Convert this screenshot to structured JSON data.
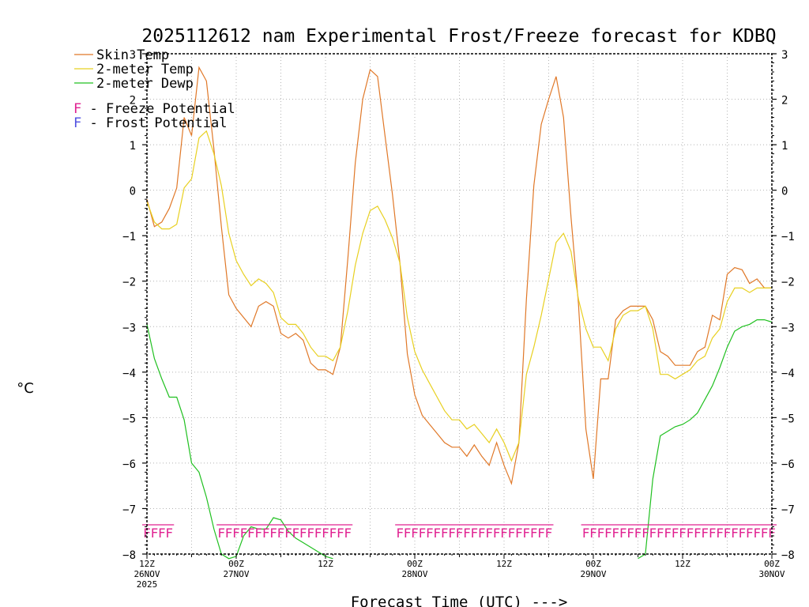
{
  "chart_data": {
    "type": "line",
    "title": "2025112612 nam Experimental Frost/Freeze forecast for KDBQ",
    "ylabel": "°C",
    "xlabel": "Forecast Time (UTC) --->",
    "ylim": [
      -8,
      3
    ],
    "y_ticks": [
      3,
      2,
      1,
      0,
      -1,
      -2,
      -3,
      -4,
      -5,
      -6,
      -7,
      -8
    ],
    "xlim": [
      0,
      84
    ],
    "x_unit": "forecast hour from 2025-11-26 12Z",
    "x_ticks": [
      {
        "x": 0,
        "line1": "12Z",
        "line2": "26NOV",
        "line3": "2025"
      },
      {
        "x": 12,
        "line1": "00Z",
        "line2": "27NOV",
        "line3": ""
      },
      {
        "x": 24,
        "line1": "12Z",
        "line2": "",
        "line3": ""
      },
      {
        "x": 36,
        "line1": "00Z",
        "line2": "28NOV",
        "line3": ""
      },
      {
        "x": 48,
        "line1": "12Z",
        "line2": "",
        "line3": ""
      },
      {
        "x": 60,
        "line1": "00Z",
        "line2": "29NOV",
        "line3": ""
      },
      {
        "x": 72,
        "line1": "12Z",
        "line2": "",
        "line3": ""
      },
      {
        "x": 84,
        "line1": "00Z",
        "line2": "30NOV",
        "line3": ""
      }
    ],
    "grid": true,
    "series": [
      {
        "name": "Skin Temp",
        "color": "#e07828",
        "points": [
          [
            0,
            -0.2
          ],
          [
            1,
            -0.8
          ],
          [
            2,
            -0.7
          ],
          [
            3,
            -0.4
          ],
          [
            4,
            0.05
          ],
          [
            5,
            1.6
          ],
          [
            6,
            1.2
          ],
          [
            7,
            2.7
          ],
          [
            8,
            2.4
          ],
          [
            9,
            0.9
          ],
          [
            10,
            -0.8
          ],
          [
            11,
            -2.3
          ],
          [
            12,
            -2.6
          ],
          [
            13,
            -2.8
          ],
          [
            14,
            -3.0
          ],
          [
            15,
            -2.55
          ],
          [
            16,
            -2.45
          ],
          [
            17,
            -2.55
          ],
          [
            18,
            -3.15
          ],
          [
            19,
            -3.25
          ],
          [
            20,
            -3.15
          ],
          [
            21,
            -3.3
          ],
          [
            22,
            -3.8
          ],
          [
            23,
            -3.95
          ],
          [
            24,
            -3.95
          ],
          [
            25,
            -4.05
          ],
          [
            26,
            -3.45
          ],
          [
            27,
            -1.5
          ],
          [
            28,
            0.6
          ],
          [
            29,
            2.0
          ],
          [
            30,
            2.65
          ],
          [
            31,
            2.5
          ],
          [
            32,
            1.2
          ],
          [
            33,
            -0.1
          ],
          [
            34,
            -1.6
          ],
          [
            35,
            -3.6
          ],
          [
            36,
            -4.5
          ],
          [
            37,
            -4.95
          ],
          [
            38,
            -5.15
          ],
          [
            39,
            -5.35
          ],
          [
            40,
            -5.55
          ],
          [
            41,
            -5.65
          ],
          [
            42,
            -5.65
          ],
          [
            43,
            -5.85
          ],
          [
            44,
            -5.6
          ],
          [
            45,
            -5.85
          ],
          [
            46,
            -6.05
          ],
          [
            47,
            -5.55
          ],
          [
            48,
            -6.05
          ],
          [
            49,
            -6.45
          ],
          [
            50,
            -5.55
          ],
          [
            51,
            -2.4
          ],
          [
            52,
            0.1
          ],
          [
            53,
            1.45
          ],
          [
            54,
            2.0
          ],
          [
            55,
            2.5
          ],
          [
            56,
            1.6
          ],
          [
            57,
            -0.6
          ],
          [
            58,
            -2.5
          ],
          [
            59,
            -5.25
          ],
          [
            60,
            -6.35
          ],
          [
            61,
            -4.15
          ],
          [
            62,
            -4.15
          ],
          [
            63,
            -2.85
          ],
          [
            64,
            -2.65
          ],
          [
            65,
            -2.55
          ],
          [
            66,
            -2.55
          ],
          [
            67,
            -2.55
          ],
          [
            68,
            -2.85
          ],
          [
            69,
            -3.55
          ],
          [
            70,
            -3.65
          ],
          [
            71,
            -3.85
          ],
          [
            72,
            -3.85
          ],
          [
            73,
            -3.85
          ],
          [
            74,
            -3.55
          ],
          [
            75,
            -3.45
          ],
          [
            76,
            -2.75
          ],
          [
            77,
            -2.85
          ],
          [
            78,
            -1.85
          ],
          [
            79,
            -1.7
          ],
          [
            80,
            -1.75
          ],
          [
            81,
            -2.05
          ],
          [
            82,
            -1.95
          ],
          [
            83,
            -2.15
          ],
          [
            84,
            -2.15
          ]
        ]
      },
      {
        "name": "2-meter Temp",
        "color": "#e8d020",
        "points": [
          [
            0,
            -0.25
          ],
          [
            1,
            -0.7
          ],
          [
            2,
            -0.85
          ],
          [
            3,
            -0.85
          ],
          [
            4,
            -0.75
          ],
          [
            5,
            0.05
          ],
          [
            6,
            0.25
          ],
          [
            7,
            1.15
          ],
          [
            8,
            1.3
          ],
          [
            9,
            0.8
          ],
          [
            10,
            0.1
          ],
          [
            11,
            -0.95
          ],
          [
            12,
            -1.55
          ],
          [
            13,
            -1.85
          ],
          [
            14,
            -2.1
          ],
          [
            15,
            -1.95
          ],
          [
            16,
            -2.05
          ],
          [
            17,
            -2.25
          ],
          [
            18,
            -2.8
          ],
          [
            19,
            -2.95
          ],
          [
            20,
            -2.95
          ],
          [
            21,
            -3.15
          ],
          [
            22,
            -3.45
          ],
          [
            23,
            -3.65
          ],
          [
            24,
            -3.65
          ],
          [
            25,
            -3.75
          ],
          [
            26,
            -3.45
          ],
          [
            27,
            -2.65
          ],
          [
            28,
            -1.65
          ],
          [
            29,
            -0.95
          ],
          [
            30,
            -0.45
          ],
          [
            31,
            -0.35
          ],
          [
            32,
            -0.65
          ],
          [
            33,
            -1.05
          ],
          [
            34,
            -1.6
          ],
          [
            35,
            -2.8
          ],
          [
            36,
            -3.55
          ],
          [
            37,
            -3.95
          ],
          [
            38,
            -4.25
          ],
          [
            39,
            -4.55
          ],
          [
            40,
            -4.85
          ],
          [
            41,
            -5.05
          ],
          [
            42,
            -5.05
          ],
          [
            43,
            -5.25
          ],
          [
            44,
            -5.15
          ],
          [
            45,
            -5.35
          ],
          [
            46,
            -5.55
          ],
          [
            47,
            -5.25
          ],
          [
            48,
            -5.55
          ],
          [
            49,
            -5.95
          ],
          [
            50,
            -5.55
          ],
          [
            51,
            -4.05
          ],
          [
            52,
            -3.45
          ],
          [
            53,
            -2.75
          ],
          [
            54,
            -1.95
          ],
          [
            55,
            -1.15
          ],
          [
            56,
            -0.95
          ],
          [
            57,
            -1.35
          ],
          [
            58,
            -2.4
          ],
          [
            59,
            -3.05
          ],
          [
            60,
            -3.45
          ],
          [
            61,
            -3.45
          ],
          [
            62,
            -3.75
          ],
          [
            63,
            -3.05
          ],
          [
            64,
            -2.75
          ],
          [
            65,
            -2.65
          ],
          [
            66,
            -2.65
          ],
          [
            67,
            -2.55
          ],
          [
            68,
            -3.05
          ],
          [
            69,
            -4.05
          ],
          [
            70,
            -4.05
          ],
          [
            71,
            -4.15
          ],
          [
            72,
            -4.05
          ],
          [
            73,
            -3.95
          ],
          [
            74,
            -3.75
          ],
          [
            75,
            -3.65
          ],
          [
            76,
            -3.25
          ],
          [
            77,
            -3.05
          ],
          [
            78,
            -2.45
          ],
          [
            79,
            -2.15
          ],
          [
            80,
            -2.15
          ],
          [
            81,
            -2.25
          ],
          [
            82,
            -2.15
          ],
          [
            83,
            -2.15
          ],
          [
            84,
            -2.15
          ]
        ]
      },
      {
        "name": "2-meter Dewp",
        "color": "#20c020",
        "points": [
          [
            0,
            -2.95
          ],
          [
            1,
            -3.7
          ],
          [
            2,
            -4.15
          ],
          [
            3,
            -4.55
          ],
          [
            4,
            -4.55
          ],
          [
            5,
            -5.05
          ],
          [
            6,
            -6.0
          ],
          [
            7,
            -6.2
          ],
          [
            8,
            -6.75
          ],
          [
            9,
            -7.45
          ],
          [
            10,
            -8.0
          ],
          [
            11,
            -8.1
          ],
          [
            12,
            -8.05
          ],
          [
            13,
            -7.6
          ],
          [
            14,
            -7.4
          ],
          [
            15,
            -7.45
          ],
          [
            16,
            -7.45
          ],
          [
            17,
            -7.2
          ],
          [
            18,
            -7.25
          ],
          [
            19,
            -7.5
          ],
          [
            20,
            -7.65
          ],
          [
            21,
            -7.75
          ],
          [
            22,
            -7.85
          ],
          [
            23,
            -7.95
          ],
          [
            24,
            -8.05
          ],
          [
            25,
            -8.1
          ],
          [
            66,
            -8.1
          ],
          [
            67,
            -8.0
          ],
          [
            68,
            -6.35
          ],
          [
            69,
            -5.4
          ],
          [
            70,
            -5.3
          ],
          [
            71,
            -5.2
          ],
          [
            72,
            -5.15
          ],
          [
            73,
            -5.05
          ],
          [
            74,
            -4.9
          ],
          [
            75,
            -4.6
          ],
          [
            76,
            -4.3
          ],
          [
            77,
            -3.9
          ],
          [
            78,
            -3.45
          ],
          [
            79,
            -3.1
          ],
          [
            80,
            -3.0
          ],
          [
            81,
            -2.95
          ],
          [
            82,
            -2.85
          ],
          [
            83,
            -2.85
          ],
          [
            84,
            -2.9
          ]
        ]
      }
    ],
    "potential_markers": {
      "symbol": "F",
      "freeze_label": "F - Freeze Potential",
      "frost_label": "F - Frost Potential",
      "freeze_color": "#e02090",
      "frost_color": "#5050e0",
      "freeze_hours": [
        0,
        1,
        2,
        3,
        10,
        11,
        12,
        13,
        14,
        15,
        16,
        17,
        18,
        19,
        20,
        21,
        22,
        23,
        24,
        25,
        26,
        27,
        34,
        35,
        36,
        37,
        38,
        39,
        40,
        41,
        42,
        43,
        44,
        45,
        46,
        47,
        48,
        49,
        50,
        51,
        52,
        53,
        54,
        59,
        60,
        61,
        62,
        63,
        64,
        65,
        66,
        67,
        68,
        69,
        70,
        71,
        72,
        73,
        74,
        75,
        76,
        77,
        78,
        79,
        80,
        81,
        82,
        83,
        84
      ]
    },
    "legend": {
      "placement": "top-left",
      "entries": [
        "Skin Temp",
        "2-meter Temp",
        "2-meter Dewp"
      ]
    }
  }
}
